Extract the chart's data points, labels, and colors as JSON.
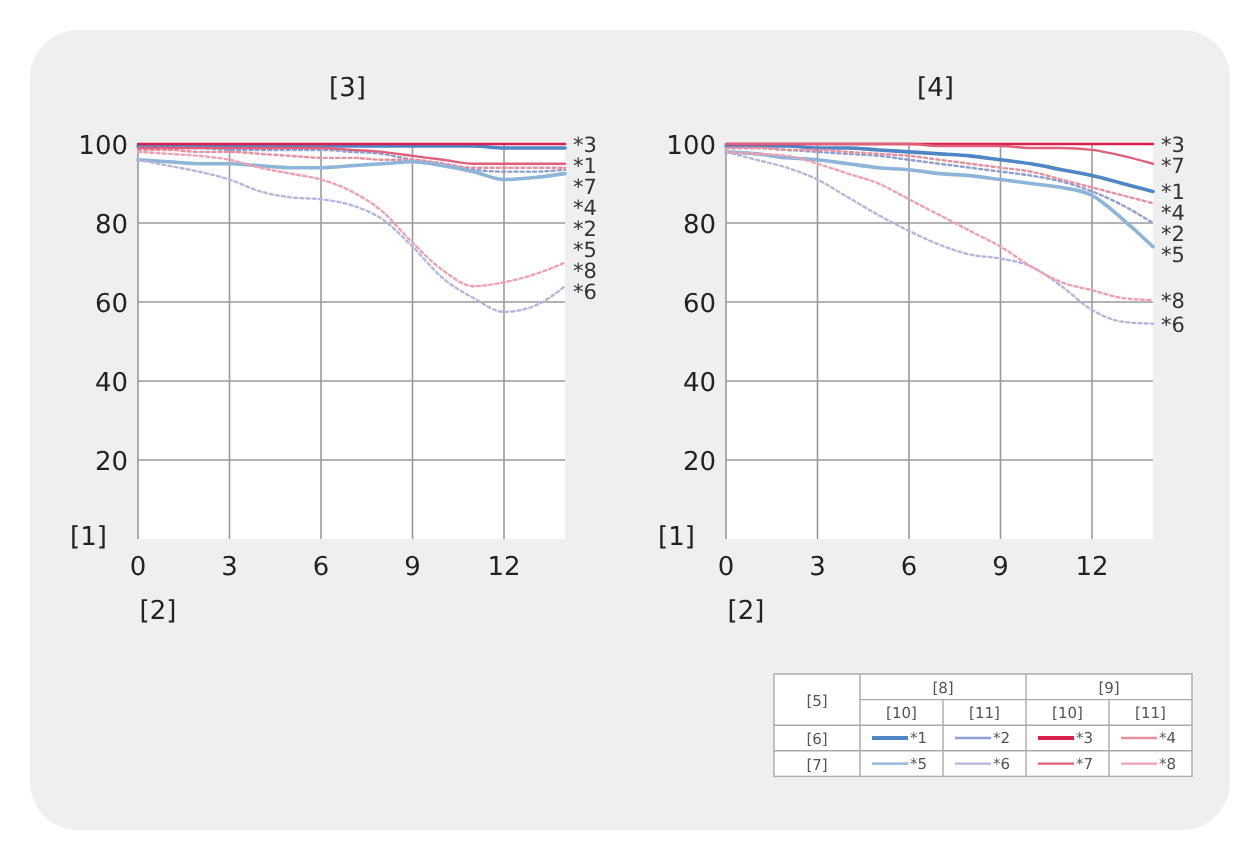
{
  "chart_data": [
    {
      "type": "line",
      "title": "[3]",
      "xlabel": "[2]",
      "ylabel": "[1]",
      "xlim": [
        0,
        14
      ],
      "xticks": [
        0,
        3,
        6,
        9,
        12
      ],
      "ylim": [
        0,
        100
      ],
      "yticks": [
        20,
        40,
        60,
        80,
        100
      ],
      "grid": true,
      "x": [
        0,
        1,
        2,
        3,
        4,
        5,
        6,
        7,
        8,
        9,
        10,
        11,
        12,
        13,
        14
      ],
      "series": [
        {
          "name": "*1",
          "color": "#4f86c6",
          "line_style": "solid",
          "values": [
            99.5,
            99.5,
            99.5,
            99.5,
            99.5,
            99.5,
            99.5,
            99.5,
            99.5,
            99.5,
            99.5,
            99.5,
            99,
            99,
            99
          ]
        },
        {
          "name": "*2",
          "color": "#8f9fd0",
          "line_style": "dotted",
          "values": [
            99,
            99,
            99,
            98.5,
            98.5,
            98.5,
            98.5,
            98,
            97.5,
            96,
            95,
            93.5,
            93,
            93,
            93.5
          ]
        },
        {
          "name": "*3",
          "color": "#d8204a",
          "line_style": "solid",
          "values": [
            100,
            100,
            100,
            100,
            100,
            100,
            100,
            100,
            100,
            100,
            100,
            100,
            100,
            100,
            100
          ]
        },
        {
          "name": "*4",
          "color": "#e7909f",
          "line_style": "dotted",
          "values": [
            98.5,
            98.5,
            98,
            98,
            97.5,
            97,
            96.5,
            96.5,
            96,
            96,
            95,
            94,
            94,
            94,
            94
          ]
        },
        {
          "name": "*5",
          "color": "#8db5d8",
          "line_style": "solid",
          "values": [
            96,
            95.5,
            95,
            95,
            94.5,
            94,
            94,
            94.5,
            95,
            95.5,
            94.5,
            93,
            91,
            91.5,
            92.5
          ]
        },
        {
          "name": "*6",
          "color": "#b4b6dc",
          "line_style": "dotted",
          "values": [
            96,
            94.5,
            93,
            91,
            88,
            86.5,
            86,
            84.5,
            81,
            74,
            66,
            61,
            57.5,
            59,
            64
          ]
        },
        {
          "name": "*7",
          "color": "#e0607a",
          "line_style": "solid",
          "values": [
            99,
            99,
            99,
            99,
            99,
            99,
            99,
            98.5,
            98,
            97,
            96,
            95,
            95,
            95,
            95
          ]
        },
        {
          "name": "*8",
          "color": "#f0a0b0",
          "line_style": "dotted",
          "values": [
            98,
            97.5,
            97,
            96,
            94,
            92.5,
            91,
            88,
            83,
            75,
            68,
            64,
            65,
            67,
            70
          ]
        }
      ]
    },
    {
      "type": "line",
      "title": "[4]",
      "xlabel": "[2]",
      "ylabel": "[1]",
      "xlim": [
        0,
        14
      ],
      "xticks": [
        0,
        3,
        6,
        9,
        12
      ],
      "ylim": [
        0,
        100
      ],
      "yticks": [
        20,
        40,
        60,
        80,
        100
      ],
      "grid": true,
      "legend": "bottom right",
      "legend_title": "[5]",
      "annotations": [
        "[6]",
        "[7]",
        "[8]",
        "[9]",
        "[10]",
        "[11]"
      ],
      "x": [
        0,
        1,
        2,
        3,
        4,
        5,
        6,
        7,
        8,
        9,
        10,
        11,
        12,
        13,
        14
      ],
      "series": [
        {
          "name": "*1",
          "color": "#4f86c6",
          "line_style": "solid",
          "values": [
            99.5,
            99.5,
            99.5,
            99,
            99,
            98.5,
            98,
            97.5,
            97,
            96,
            95,
            93.5,
            92,
            90,
            88
          ]
        },
        {
          "name": "*2",
          "color": "#8f9fd0",
          "line_style": "dotted",
          "values": [
            99,
            99,
            98.5,
            98,
            97.5,
            97,
            96,
            95,
            94,
            93,
            92,
            90.5,
            88,
            84.5,
            80
          ]
        },
        {
          "name": "*3",
          "color": "#d8204a",
          "line_style": "solid",
          "values": [
            100,
            100,
            100,
            100,
            100,
            100,
            100,
            100,
            100,
            100,
            100,
            100,
            100,
            100,
            100
          ]
        },
        {
          "name": "*4",
          "color": "#e7909f",
          "line_style": "dotted",
          "values": [
            99,
            99,
            98.5,
            98.5,
            98,
            97.5,
            97,
            96,
            95,
            94,
            93,
            91,
            89,
            87,
            85
          ]
        },
        {
          "name": "*5",
          "color": "#8db5d8",
          "line_style": "solid",
          "values": [
            98,
            97.5,
            96.5,
            96,
            95,
            94,
            93.5,
            92.5,
            92,
            91,
            90,
            89,
            87,
            81,
            74
          ]
        },
        {
          "name": "*6",
          "color": "#b4b6dc",
          "line_style": "dotted",
          "values": [
            98,
            96,
            94,
            91,
            86.5,
            82,
            78,
            74.5,
            72,
            71,
            69,
            64,
            58,
            55,
            54.5
          ]
        },
        {
          "name": "*7",
          "color": "#e0607a",
          "line_style": "solid",
          "values": [
            100,
            100,
            100,
            100,
            100,
            100,
            100,
            99.5,
            99.5,
            99.5,
            99,
            99,
            98.5,
            97,
            95
          ]
        },
        {
          "name": "*8",
          "color": "#f0a0b0",
          "line_style": "dotted",
          "values": [
            98,
            97.5,
            97,
            95,
            92.5,
            90,
            86,
            82,
            78,
            74,
            69,
            65,
            63,
            61,
            60.5
          ]
        }
      ]
    }
  ]
}
